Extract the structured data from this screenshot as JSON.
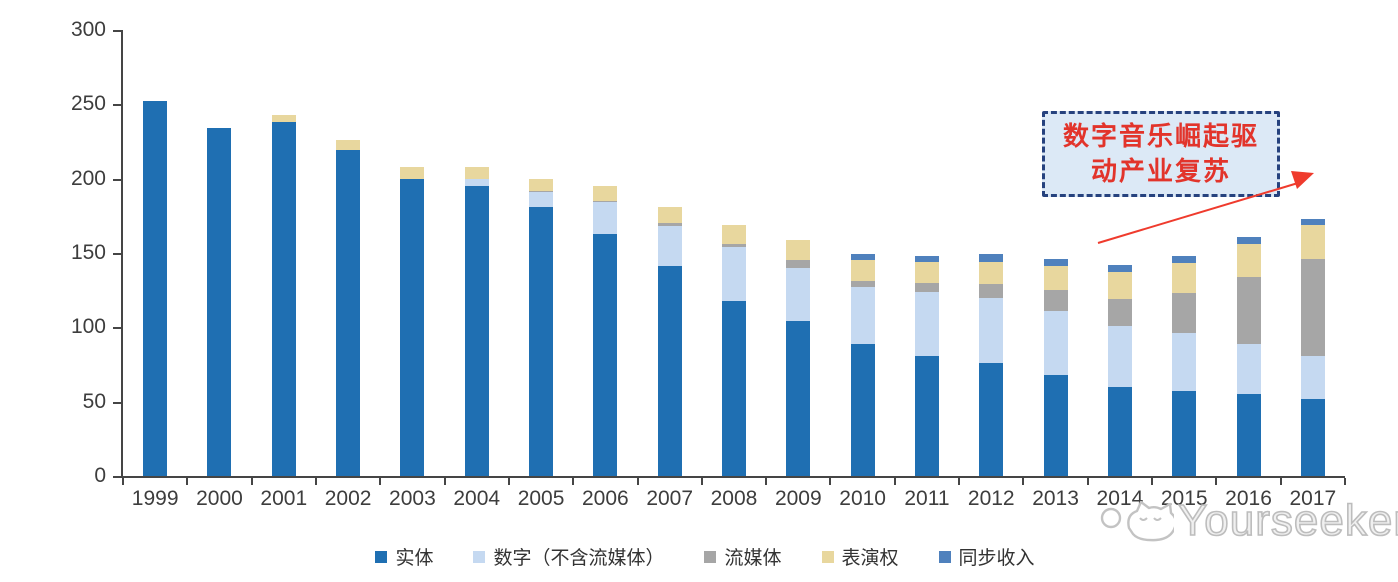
{
  "chart_data": {
    "type": "bar",
    "stacked": true,
    "title": "",
    "xlabel": "",
    "ylabel": "",
    "categories": [
      "1999",
      "2000",
      "2001",
      "2002",
      "2003",
      "2004",
      "2005",
      "2006",
      "2007",
      "2008",
      "2009",
      "2010",
      "2011",
      "2012",
      "2013",
      "2014",
      "2015",
      "2016",
      "2017"
    ],
    "series": [
      {
        "name": "实体",
        "color": "#1F6FB2",
        "values": [
          252,
          234,
          238,
          219,
          200,
          195,
          181,
          163,
          141,
          118,
          104,
          89,
          81,
          76,
          68,
          60,
          57,
          55,
          52
        ]
      },
      {
        "name": "数字（不含流媒体）",
        "color": "#C5D9F1",
        "values": [
          0,
          0,
          0,
          0,
          0,
          5,
          10,
          21,
          27,
          36,
          36,
          38,
          43,
          44,
          43,
          41,
          39,
          34,
          29
        ]
      },
      {
        "name": "流媒体",
        "color": "#A6A6A6",
        "values": [
          0,
          0,
          0,
          0,
          0,
          0,
          1,
          1,
          2,
          2,
          5,
          4,
          6,
          9,
          14,
          18,
          27,
          45,
          65
        ]
      },
      {
        "name": "表演权",
        "color": "#E8D79E",
        "values": [
          0,
          0,
          5,
          7,
          8,
          8,
          8,
          10,
          11,
          13,
          14,
          14,
          14,
          15,
          16,
          18,
          20,
          22,
          23
        ]
      },
      {
        "name": "同步收入",
        "color": "#4F81BD",
        "values": [
          0,
          0,
          0,
          0,
          0,
          0,
          0,
          0,
          0,
          0,
          0,
          4,
          4,
          5,
          5,
          5,
          5,
          5,
          4
        ]
      }
    ],
    "totals": [
      252,
      234,
      243,
      226,
      208,
      208,
      200,
      195,
      181,
      169,
      159,
      149,
      148,
      149,
      146,
      142,
      148,
      161,
      173
    ],
    "ylim": [
      0,
      300
    ],
    "yticks": [
      0,
      50,
      100,
      150,
      200,
      250,
      300
    ],
    "grid": false,
    "legend_position": "bottom"
  },
  "annotation": {
    "line1": "数字音乐崛起驱",
    "line2": "动产业复苏",
    "border_color": "#26427E",
    "fill_color": "#DCE9F6",
    "text_color": "#E2342B",
    "arrow_color": "#EF3B2D"
  },
  "watermark": {
    "text": "Yourseeker"
  }
}
